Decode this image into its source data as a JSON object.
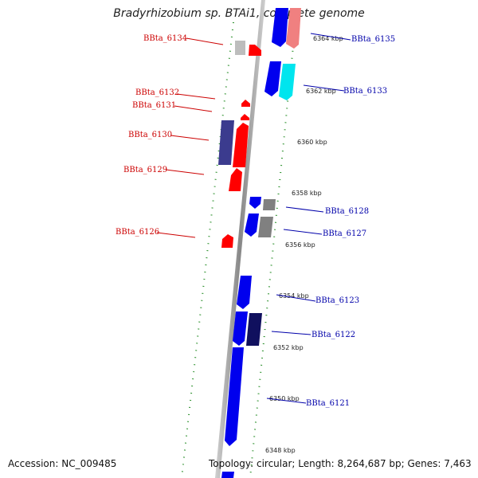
{
  "title": "Bradyrhizobium sp. BTAi1, complete genome",
  "footer": {
    "accession": "Accession: NC_009485",
    "topology": "Topology: circular; Length: 8,264,687 bp; Genes: 7,463"
  },
  "colors": {
    "reverse_label": "#cc0000",
    "forward_label": "#0000aa",
    "tick": "#228b22",
    "backbone": "#888888"
  },
  "kbp_labels": [
    "6364 kbp",
    "6362 kbp",
    "6360 kbp",
    "6358 kbp",
    "6356 kbp",
    "6354 kbp",
    "6352 kbp",
    "6350 kbp",
    "6348 kbp"
  ],
  "reverse_genes": [
    "BBta_6134",
    "BBta_6132",
    "BBta_6131",
    "BBta_6130",
    "BBta_6129",
    "BBta_6126"
  ],
  "forward_genes": [
    "BBta_6135",
    "BBta_6133",
    "BBta_6128",
    "BBta_6127",
    "BBta_6123",
    "BBta_6122",
    "BBta_6121"
  ]
}
